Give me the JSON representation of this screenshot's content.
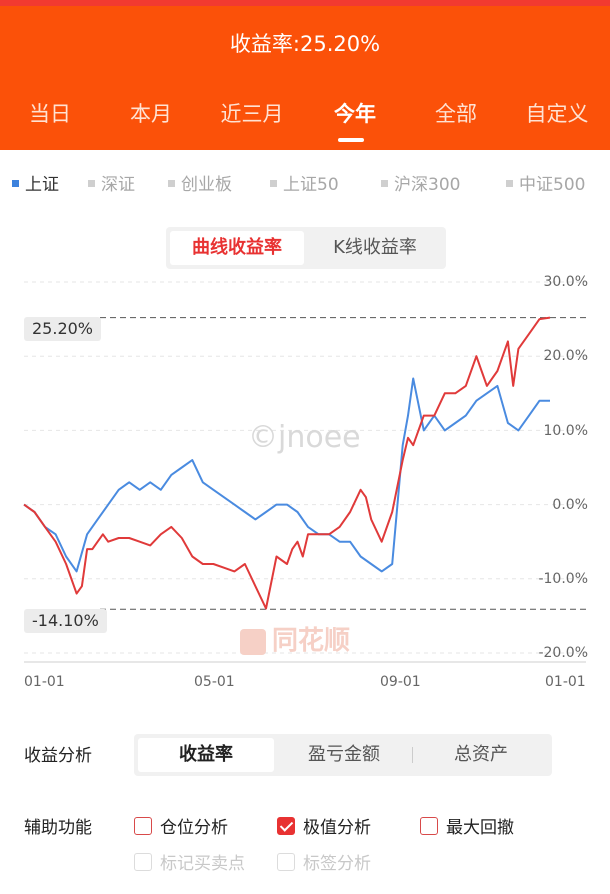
{
  "header": {
    "title": "收益率:25.20%",
    "tabs": [
      "当日",
      "本月",
      "近三月",
      "今年",
      "全部",
      "自定义"
    ],
    "active_tab": 3
  },
  "indices": {
    "items": [
      "上证",
      "深证",
      "创业板",
      "上证50",
      "沪深300",
      "中证500"
    ],
    "active": 0
  },
  "chart_mode": {
    "options": [
      "曲线收益率",
      "K线收益率"
    ],
    "active": 0
  },
  "chart": {
    "max_label": "25.20%",
    "min_label": "-14.10%",
    "watermark": "©jnoee",
    "logo": "同花顺"
  },
  "colors": {
    "header": "#fb5109",
    "account": "#e03a3a",
    "index": "#4a8be0"
  },
  "chart_data": {
    "type": "line",
    "ylim": [
      -20,
      30
    ],
    "yticks": [
      "30.0%",
      "20.0%",
      "10.0%",
      "0.0%",
      "-10.0%",
      "-20.0%"
    ],
    "ytick_values": [
      30,
      20,
      10,
      0,
      -10,
      -20
    ],
    "xticks": [
      "01-01",
      "05-01",
      "09-01",
      "01-01"
    ],
    "reference_lines": [
      25.2,
      -14.1
    ],
    "series": [
      {
        "name": "account",
        "color": "#e03a3a",
        "x": [
          0,
          0.02,
          0.04,
          0.06,
          0.08,
          0.1,
          0.11,
          0.12,
          0.13,
          0.14,
          0.15,
          0.16,
          0.18,
          0.2,
          0.22,
          0.24,
          0.26,
          0.28,
          0.3,
          0.32,
          0.34,
          0.36,
          0.38,
          0.4,
          0.42,
          0.44,
          0.46,
          0.48,
          0.5,
          0.51,
          0.52,
          0.53,
          0.54,
          0.56,
          0.58,
          0.6,
          0.62,
          0.64,
          0.65,
          0.66,
          0.68,
          0.7,
          0.72,
          0.73,
          0.74,
          0.76,
          0.78,
          0.8,
          0.82,
          0.84,
          0.86,
          0.87,
          0.88,
          0.9,
          0.92,
          0.93,
          0.94,
          0.96,
          0.98,
          1.0
        ],
        "y": [
          0,
          -1,
          -3,
          -5,
          -8,
          -12,
          -11,
          -6,
          -6,
          -5,
          -4,
          -5,
          -4.5,
          -4.5,
          -5,
          -5.5,
          -4,
          -3,
          -4.5,
          -7,
          -8,
          -8,
          -8.5,
          -9,
          -8,
          -11,
          -14,
          -7,
          -8,
          -6,
          -5,
          -7,
          -4,
          -4,
          -4,
          -3,
          -1,
          2,
          1,
          -2,
          -5,
          -1,
          6,
          9,
          8,
          12,
          12,
          15,
          15,
          16,
          20,
          18,
          16,
          18,
          22,
          16,
          21,
          23,
          25,
          25.2
        ]
      },
      {
        "name": "上证",
        "color": "#4a8be0",
        "x": [
          0,
          0.02,
          0.04,
          0.06,
          0.08,
          0.1,
          0.12,
          0.14,
          0.16,
          0.18,
          0.2,
          0.22,
          0.24,
          0.26,
          0.28,
          0.3,
          0.32,
          0.34,
          0.36,
          0.38,
          0.4,
          0.42,
          0.44,
          0.46,
          0.48,
          0.5,
          0.52,
          0.54,
          0.56,
          0.58,
          0.6,
          0.62,
          0.64,
          0.66,
          0.68,
          0.7,
          0.72,
          0.73,
          0.74,
          0.76,
          0.78,
          0.8,
          0.82,
          0.84,
          0.86,
          0.88,
          0.9,
          0.92,
          0.94,
          0.96,
          0.98,
          1.0
        ],
        "y": [
          0,
          -1,
          -3,
          -4,
          -7,
          -9,
          -4,
          -2,
          0,
          2,
          3,
          2,
          3,
          2,
          4,
          5,
          6,
          3,
          2,
          1,
          0,
          -1,
          -2,
          -1,
          0,
          0,
          -1,
          -3,
          -4,
          -4,
          -5,
          -5,
          -7,
          -8,
          -9,
          -8,
          8,
          12,
          17,
          10,
          12,
          10,
          11,
          12,
          14,
          15,
          16,
          11,
          10,
          12,
          14,
          14
        ]
      }
    ]
  },
  "analysis": {
    "label": "收益分析",
    "options": [
      "收益率",
      "盈亏金额",
      "总资产"
    ],
    "active": 0
  },
  "aux": {
    "label": "辅助功能",
    "checkboxes": [
      {
        "label": "仓位分析",
        "checked": false,
        "disabled": false
      },
      {
        "label": "极值分析",
        "checked": true,
        "disabled": false
      },
      {
        "label": "最大回撤",
        "checked": false,
        "disabled": false
      },
      {
        "label": "标记买卖点",
        "checked": false,
        "disabled": true
      },
      {
        "label": "标签分析",
        "checked": false,
        "disabled": true
      }
    ]
  }
}
